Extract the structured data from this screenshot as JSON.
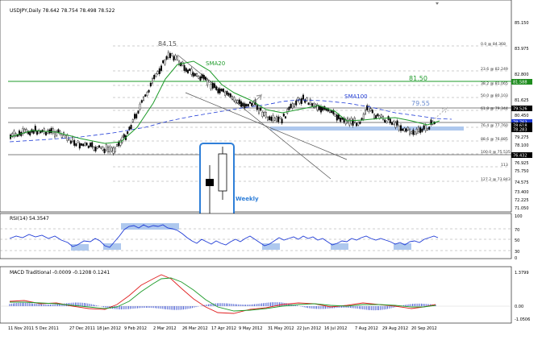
{
  "window": {
    "title": "USDJPY,Daily  78.642 78.754 78.498 78.522"
  },
  "main_chart": {
    "annotations": {
      "peak_label": "84.15",
      "sma20_label": "SMA20",
      "sma100_label": "SMA100",
      "level_8150": "81.50",
      "level_7955": "79.55",
      "weekly_label": "Weekly"
    },
    "price_axis": [
      "85.150",
      "83.975",
      "82.800",
      "81.625",
      "80.450",
      "79.275",
      "78.100",
      "76.925",
      "75.750",
      "74.575",
      "73.400",
      "72.225",
      "71.050"
    ],
    "price_markers": [
      {
        "text": "81.588",
        "color": "#1e8c1e"
      },
      {
        "text": "79.526",
        "color": "#000000"
      },
      {
        "text": "78.763",
        "color": "#1f3bd6"
      },
      {
        "text": "78.618",
        "color": "#000000"
      },
      {
        "text": "78.283",
        "color": "#000000"
      },
      {
        "text": "76.432",
        "color": "#000000"
      }
    ],
    "fib_levels": [
      "0.0 @ 84.368",
      "23.6 @ 82.249",
      "38.2 @ 81.065",
      "50.0 @ 80.103",
      "61.8 @ 79.344",
      "76.4 @ 77.760",
      "88.6 @ 76.885",
      "100.0 @ 75.535",
      "113",
      "127.2 @ 73.843"
    ]
  },
  "rsi": {
    "label": "RSI(14) 54.3547",
    "axis": [
      "100",
      "70",
      "50",
      "30",
      "0"
    ]
  },
  "macd": {
    "label": "MACD Traditional -0.0009 -0.1208 0.1241",
    "axis": [
      "1.3799",
      "0.00",
      "-1.0506"
    ]
  },
  "time_axis": [
    "11 Nov 2011",
    "5 Dec 2011",
    "27 Dec 2011",
    "18 Jan 2012",
    "9 Feb 2012",
    "2 Mar 2012",
    "26 Mar 2012",
    "17 Apr 2012",
    "9 May 2012",
    "31 May 2012",
    "22 Jun 2012",
    "16 Jul 2012",
    "7 Aug 2012",
    "29 Aug 2012",
    "20 Sep 2012"
  ],
  "colors": {
    "sma20": "#1e9b2a",
    "sma100": "#1f3bd6",
    "rsi_line": "#1f3bd6",
    "macd_main": "#e02020",
    "macd_signal": "#1e9b2a",
    "macd_hist": "#2038c8",
    "highlight": "#aec8ee",
    "weekly_box": "#2f7fd8"
  }
}
